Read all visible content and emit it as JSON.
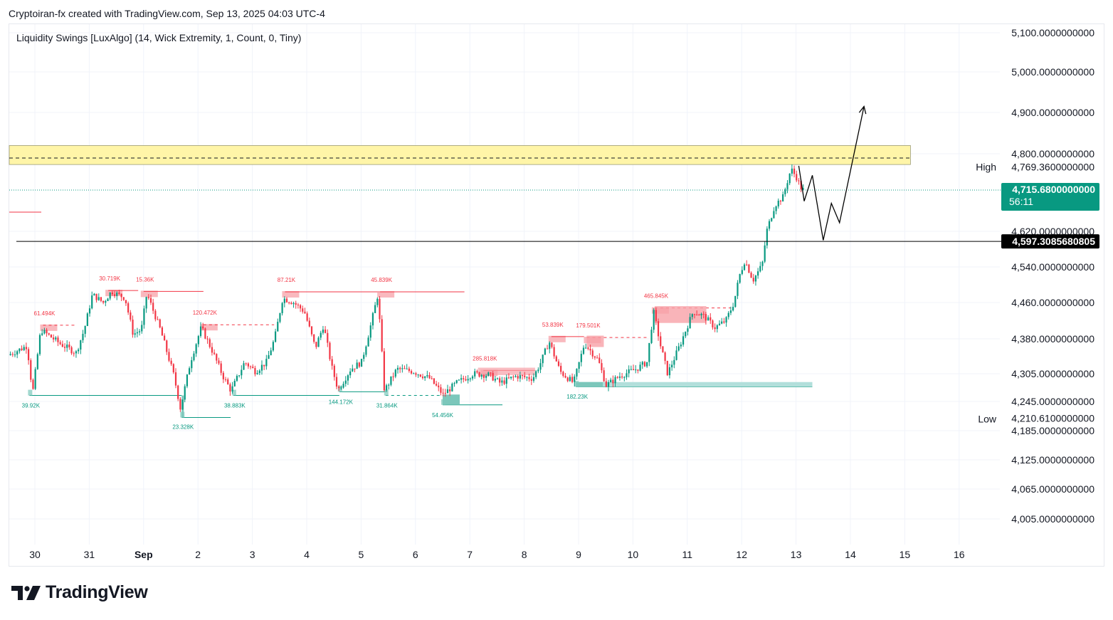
{
  "header": {
    "title": "Cryptoiran-fx created with TradingView.com, Sep 13, 2025 04:03 UTC-4"
  },
  "indicator": {
    "label": "Liquidity Swings [LuxAlgo] (14, Wick Extremity, 1, Count, 0, Tiny)"
  },
  "brand": {
    "name": "TradingView",
    "icon": "tradingview-logo-icon"
  },
  "chart_data": {
    "type": "candlestick",
    "ylim": [
      3970,
      5130
    ],
    "x_ticks": [
      {
        "label": "30",
        "day": 0
      },
      {
        "label": "31",
        "day": 1
      },
      {
        "label": "Sep",
        "day": 2,
        "bold": true
      },
      {
        "label": "2",
        "day": 3
      },
      {
        "label": "3",
        "day": 4
      },
      {
        "label": "4",
        "day": 5
      },
      {
        "label": "5",
        "day": 6
      },
      {
        "label": "6",
        "day": 7
      },
      {
        "label": "7",
        "day": 8
      },
      {
        "label": "8",
        "day": 9
      },
      {
        "label": "9",
        "day": 10
      },
      {
        "label": "10",
        "day": 11
      },
      {
        "label": "11",
        "day": 12
      },
      {
        "label": "12",
        "day": 13
      },
      {
        "label": "13",
        "day": 14
      },
      {
        "label": "14",
        "day": 15
      },
      {
        "label": "15",
        "day": 16
      },
      {
        "label": "16",
        "day": 17
      }
    ],
    "y_ticks": [
      {
        "label": "5,100.0000000000",
        "value": 5100
      },
      {
        "label": "5,000.0000000000",
        "value": 5000
      },
      {
        "label": "4,900.0000000000",
        "value": 4900
      },
      {
        "label": "4,800.0000000000",
        "value": 4800
      },
      {
        "label": "4,769.3600000000",
        "value": 4769.36
      },
      {
        "label": "4,620.0000000000",
        "value": 4620
      },
      {
        "label": "4,540.0000000000",
        "value": 4540
      },
      {
        "label": "4,460.0000000000",
        "value": 4460
      },
      {
        "label": "4,380.0000000000",
        "value": 4380
      },
      {
        "label": "4,305.0000000000",
        "value": 4305
      },
      {
        "label": "4,245.0000000000",
        "value": 4245
      },
      {
        "label": "4,210.6100000000",
        "value": 4210.61
      },
      {
        "label": "4,185.0000000000",
        "value": 4185
      },
      {
        "label": "4,125.0000000000",
        "value": 4125
      },
      {
        "label": "4,065.0000000000",
        "value": 4065
      },
      {
        "label": "4,005.0000000000",
        "value": 4005
      }
    ],
    "high_label": "High",
    "low_label": "Low",
    "current_price": {
      "label": "4,715.6800000000",
      "countdown": "56:11",
      "value": 4715.68,
      "color": "#089981"
    },
    "level_price": {
      "label": "4,597.3085680805",
      "value": 4597.31,
      "color": "#000000"
    },
    "supply_zone": {
      "from_day": -0.5,
      "to_day": 16.0,
      "low": 4775,
      "high": 4820,
      "mid": 4800,
      "color": "#fff5a8"
    },
    "swing_highs": [
      {
        "label": "61.494K",
        "day": 0.15,
        "price": 4410,
        "end_day": 0.75
      },
      {
        "label": "30.719K",
        "day": 1.35,
        "price": 4487,
        "end_day": 1.9
      },
      {
        "label": "15.36K",
        "day": 2.0,
        "price": 4485,
        "end_day": 3.1
      },
      {
        "label": "120.472K",
        "day": 3.1,
        "price": 4411,
        "end_day": 4.4
      },
      {
        "label": "87.21K",
        "day": 4.6,
        "price": 4484,
        "end_day": 7.9
      },
      {
        "label": "45.839K",
        "day": 6.35,
        "price": 4484,
        "end_day": 7.9
      },
      {
        "label": "285.818K",
        "day": 8.25,
        "price": 4312,
        "end_day": 9.2
      },
      {
        "label": "53.839K",
        "day": 9.5,
        "price": 4385,
        "end_day": 10.1
      },
      {
        "label": "179.501K",
        "day": 10.15,
        "price": 4383,
        "end_day": 11.3
      },
      {
        "label": "465.845K",
        "day": 11.4,
        "price": 4448,
        "end_day": 12.8
      }
    ],
    "swing_lows": [
      {
        "label": "39.92K",
        "day": -0.1,
        "price": 4258,
        "end_day": 2.7
      },
      {
        "label": "23.328K",
        "day": 2.7,
        "price": 4212,
        "end_day": 3.6
      },
      {
        "label": "38.883K",
        "day": 3.65,
        "price": 4258,
        "end_day": 5.6
      },
      {
        "label": "144.172K",
        "day": 5.6,
        "price": 4266,
        "end_day": 6.45
      },
      {
        "label": "31.864K",
        "day": 6.45,
        "price": 4258,
        "end_day": 7.5
      },
      {
        "label": "54.456K",
        "day": 7.5,
        "price": 4238,
        "end_day": 8.6
      },
      {
        "label": "182.23K",
        "day": 9.95,
        "price": 4277,
        "end_day": 14.3
      }
    ],
    "projection": [
      {
        "day": 14.05,
        "price": 4772
      },
      {
        "day": 14.15,
        "price": 4690
      },
      {
        "day": 14.3,
        "price": 4750
      },
      {
        "day": 14.5,
        "price": 4600
      },
      {
        "day": 14.65,
        "price": 4685
      },
      {
        "day": 14.8,
        "price": 4640
      },
      {
        "day": 15.25,
        "price": 4915
      }
    ],
    "anchors": [
      {
        "day": -0.45,
        "price": 4345
      },
      {
        "day": -0.1,
        "price": 4365
      },
      {
        "day": 0.0,
        "price": 4262
      },
      {
        "day": 0.15,
        "price": 4400
      },
      {
        "day": 0.5,
        "price": 4370
      },
      {
        "day": 0.8,
        "price": 4350
      },
      {
        "day": 0.95,
        "price": 4400
      },
      {
        "day": 1.1,
        "price": 4478
      },
      {
        "day": 1.3,
        "price": 4460
      },
      {
        "day": 1.45,
        "price": 4485
      },
      {
        "day": 1.7,
        "price": 4470
      },
      {
        "day": 1.85,
        "price": 4390
      },
      {
        "day": 2.0,
        "price": 4400
      },
      {
        "day": 2.1,
        "price": 4480
      },
      {
        "day": 2.35,
        "price": 4400
      },
      {
        "day": 2.6,
        "price": 4300
      },
      {
        "day": 2.72,
        "price": 4230
      },
      {
        "day": 2.9,
        "price": 4330
      },
      {
        "day": 3.1,
        "price": 4405
      },
      {
        "day": 3.3,
        "price": 4355
      },
      {
        "day": 3.5,
        "price": 4300
      },
      {
        "day": 3.65,
        "price": 4268
      },
      {
        "day": 3.9,
        "price": 4330
      },
      {
        "day": 4.1,
        "price": 4310
      },
      {
        "day": 4.3,
        "price": 4330
      },
      {
        "day": 4.45,
        "price": 4380
      },
      {
        "day": 4.6,
        "price": 4470
      },
      {
        "day": 4.8,
        "price": 4460
      },
      {
        "day": 5.0,
        "price": 4440
      },
      {
        "day": 5.2,
        "price": 4360
      },
      {
        "day": 5.35,
        "price": 4410
      },
      {
        "day": 5.5,
        "price": 4320
      },
      {
        "day": 5.62,
        "price": 4270
      },
      {
        "day": 5.85,
        "price": 4315
      },
      {
        "day": 6.05,
        "price": 4330
      },
      {
        "day": 6.2,
        "price": 4400
      },
      {
        "day": 6.35,
        "price": 4478
      },
      {
        "day": 6.47,
        "price": 4268
      },
      {
        "day": 6.7,
        "price": 4315
      },
      {
        "day": 7.0,
        "price": 4310
      },
      {
        "day": 7.3,
        "price": 4295
      },
      {
        "day": 7.55,
        "price": 4260
      },
      {
        "day": 7.8,
        "price": 4285
      },
      {
        "day": 8.1,
        "price": 4305
      },
      {
        "day": 8.4,
        "price": 4302
      },
      {
        "day": 8.6,
        "price": 4285
      },
      {
        "day": 8.9,
        "price": 4300
      },
      {
        "day": 9.2,
        "price": 4295
      },
      {
        "day": 9.35,
        "price": 4330
      },
      {
        "day": 9.5,
        "price": 4375
      },
      {
        "day": 9.7,
        "price": 4310
      },
      {
        "day": 9.95,
        "price": 4285
      },
      {
        "day": 10.15,
        "price": 4370
      },
      {
        "day": 10.4,
        "price": 4335
      },
      {
        "day": 10.55,
        "price": 4280
      },
      {
        "day": 10.8,
        "price": 4300
      },
      {
        "day": 11.1,
        "price": 4315
      },
      {
        "day": 11.3,
        "price": 4330
      },
      {
        "day": 11.42,
        "price": 4440
      },
      {
        "day": 11.55,
        "price": 4365
      },
      {
        "day": 11.68,
        "price": 4305
      },
      {
        "day": 11.9,
        "price": 4365
      },
      {
        "day": 12.15,
        "price": 4440
      },
      {
        "day": 12.35,
        "price": 4430
      },
      {
        "day": 12.55,
        "price": 4405
      },
      {
        "day": 12.75,
        "price": 4420
      },
      {
        "day": 12.9,
        "price": 4460
      },
      {
        "day": 13.0,
        "price": 4520
      },
      {
        "day": 13.1,
        "price": 4555
      },
      {
        "day": 13.25,
        "price": 4510
      },
      {
        "day": 13.42,
        "price": 4545
      },
      {
        "day": 13.5,
        "price": 4620
      },
      {
        "day": 13.65,
        "price": 4680
      },
      {
        "day": 13.8,
        "price": 4700
      },
      {
        "day": 13.95,
        "price": 4765
      },
      {
        "day": 14.05,
        "price": 4745
      },
      {
        "day": 14.15,
        "price": 4716
      }
    ]
  },
  "colors": {
    "up": "#089981",
    "down": "#f23645",
    "grid": "#f0f3fa",
    "high_zone": "#f7a1a8",
    "low_zone": "#7cc7bb",
    "low_zone_light": "#b2dfdb"
  }
}
